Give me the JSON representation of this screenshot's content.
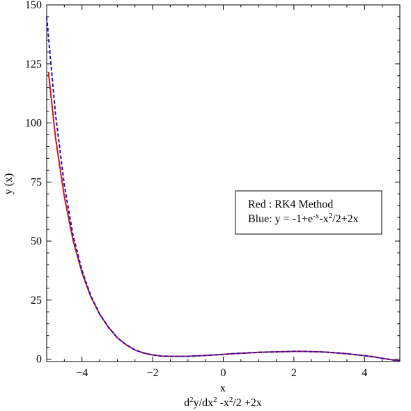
{
  "chart_data": {
    "type": "line",
    "xlabel": "x",
    "ylabel": "y (x)",
    "subtitle": "d2y/dx2 -x2/2 +2x",
    "xlim": [
      -5,
      5
    ],
    "ylim": [
      -1,
      150
    ],
    "xticks": [
      -4,
      -2,
      0,
      2,
      4
    ],
    "xtick_labels": [
      "−4",
      "−2",
      "0",
      "2",
      "4"
    ],
    "yticks": [
      0,
      25,
      50,
      75,
      100,
      125,
      150
    ],
    "ytick_labels": [
      "0",
      "25",
      "50",
      "75",
      "100",
      "125",
      "150"
    ],
    "grid": false,
    "legend": {
      "placement": "center-right",
      "line1": "Red : RK4 Method",
      "line2_prefix": "Blue: y = -1+e",
      "line2_exp1": "-x",
      "line2_mid": "-x",
      "line2_exp2": "2",
      "line2_suffix": "/2+2x"
    },
    "caption": {
      "p1": "d",
      "s1": "2",
      "p2": "y/dx",
      "s2": "2",
      "p3": " -x",
      "s3": "2",
      "p4": "/2 +2x"
    },
    "series": [
      {
        "color": "#dd1111",
        "style": "solid",
        "x": [
          -4.95,
          -4.75,
          -4.5,
          -4.25,
          -4.0,
          -3.75,
          -3.5,
          -3.25,
          -3.0,
          -2.75,
          -2.5,
          -2.25,
          -2.0,
          -1.75,
          -1.5,
          -1.25,
          -1.0,
          -0.75,
          -0.5,
          -0.25,
          0.0,
          0.25,
          0.5,
          0.75,
          1.0,
          1.25,
          1.5,
          1.75,
          2.0,
          2.25,
          2.5,
          2.75,
          3.0,
          3.25,
          3.5,
          3.75,
          4.0,
          4.25,
          4.5,
          4.75,
          5.0
        ],
        "values": [
          121.7,
          93.8,
          68.9,
          50.2,
          36.6,
          26.4,
          19.0,
          13.5,
          9.1,
          6.1,
          3.9,
          2.6,
          1.8,
          1.3,
          1.2,
          1.2,
          1.2,
          1.4,
          1.6,
          1.8,
          2.0,
          2.3,
          2.5,
          2.7,
          2.9,
          3.0,
          3.1,
          3.2,
          3.3,
          3.3,
          3.2,
          3.1,
          2.9,
          2.6,
          2.3,
          1.9,
          1.5,
          1.0,
          0.4,
          -0.2,
          -0.8
        ]
      },
      {
        "color": "#1111cc",
        "style": "dashed",
        "x": [
          -5.0,
          -4.75,
          -4.5,
          -4.25,
          -4.0,
          -3.75,
          -3.5,
          -3.25,
          -3.0,
          -2.75,
          -2.5,
          -2.25,
          -2.0,
          -1.75,
          -1.5,
          -1.25,
          -1.0,
          -0.75,
          -0.5,
          -0.25,
          0.0,
          0.25,
          0.5,
          0.75,
          1.0,
          1.25,
          1.5,
          1.75,
          2.0,
          2.25,
          2.5,
          2.75,
          3.0,
          3.25,
          3.5,
          3.75,
          4.0,
          4.25,
          4.5,
          4.75,
          5.0
        ],
        "values": [
          144.9,
          103.7,
          73.8,
          52.2,
          37.6,
          26.8,
          19.1,
          13.5,
          9.1,
          6.1,
          3.9,
          2.6,
          1.8,
          1.3,
          1.2,
          1.2,
          1.2,
          1.4,
          1.6,
          1.8,
          2.0,
          2.3,
          2.5,
          2.7,
          2.9,
          3.0,
          3.1,
          3.2,
          3.3,
          3.3,
          3.2,
          3.1,
          2.9,
          2.6,
          2.3,
          1.9,
          1.5,
          1.0,
          0.4,
          -0.2,
          -0.8
        ]
      }
    ]
  }
}
